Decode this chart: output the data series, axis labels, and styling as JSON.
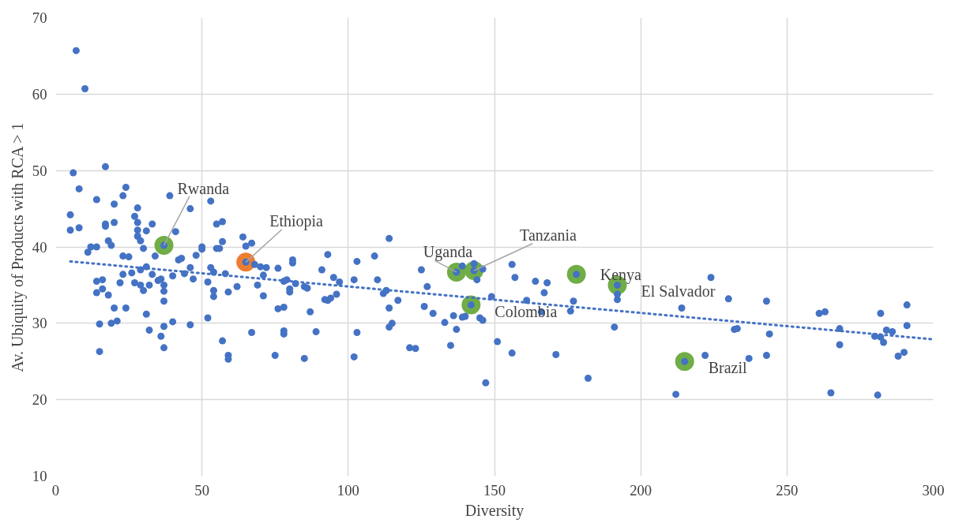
{
  "chart_data": {
    "type": "scatter",
    "xlabel": "Diversity",
    "ylabel": "Av. Ubiquity of Products with RCA > 1",
    "xlim": [
      0,
      300
    ],
    "xticks": [
      0,
      50,
      100,
      150,
      200,
      250,
      300
    ],
    "ylim": [
      10,
      70
    ],
    "yticks": [
      10,
      20,
      30,
      40,
      50,
      60,
      70
    ],
    "grid": true,
    "marker": "circle",
    "series": [
      {
        "type": "scatter",
        "color": "#70ad47",
        "x": [
          37,
          137,
          143,
          142,
          178,
          192,
          215
        ],
        "values": [
          40.2,
          36.7,
          36.9,
          32.4,
          36.4,
          35,
          25
        ]
      },
      {
        "type": "scatter",
        "color": "#ed7d31",
        "x": [
          65
        ],
        "values": [
          38
        ]
      },
      {
        "type": "line",
        "marker": "none",
        "line_style": "dotted",
        "color": "#4472c4",
        "x": [
          5,
          300
        ],
        "values": [
          38.1,
          27.9
        ]
      },
      {
        "color": "#4472c4",
        "x": [
          7,
          10,
          6,
          17,
          5,
          5,
          8,
          8,
          11,
          12,
          14,
          14,
          14,
          14,
          15,
          15,
          16,
          16,
          17,
          17,
          18,
          18,
          19,
          19,
          20,
          20,
          20,
          21,
          22,
          23,
          23,
          23,
          24,
          24,
          25,
          26,
          27,
          27,
          28,
          28,
          28,
          28,
          29,
          29,
          29,
          30,
          30,
          31,
          31,
          31,
          32,
          32,
          33,
          33,
          34,
          35,
          36,
          36,
          37,
          37,
          37,
          37,
          37,
          39,
          40,
          40,
          41,
          42,
          43,
          44,
          46,
          46,
          46,
          47,
          48,
          50,
          50,
          52,
          52,
          53,
          53,
          54,
          54,
          54,
          55,
          55,
          56,
          57,
          57,
          57,
          58,
          59,
          59,
          59,
          62,
          64,
          65,
          67,
          67,
          68,
          69,
          70,
          71,
          71,
          72,
          75,
          76,
          76,
          78,
          78,
          78,
          78,
          79,
          80,
          80,
          81,
          81,
          82,
          85,
          85,
          86,
          87,
          89,
          91,
          92,
          93,
          93,
          94,
          95,
          96,
          97,
          102,
          102,
          103,
          103,
          109,
          110,
          112,
          113,
          114,
          114,
          114,
          115,
          117,
          121,
          123,
          125,
          126,
          127,
          129,
          133,
          135,
          136,
          137,
          139,
          139,
          140,
          143,
          144,
          145,
          146,
          146,
          147,
          149,
          151,
          156,
          156,
          157,
          161,
          164,
          166,
          167,
          168,
          171,
          176,
          177,
          182,
          191,
          192,
          192,
          212,
          214,
          222,
          224,
          230,
          232,
          233,
          237,
          243,
          243,
          244,
          261,
          263,
          265,
          268,
          268,
          280,
          281,
          282,
          282,
          283,
          284,
          286,
          288,
          290,
          291,
          291,
          37,
          65,
          137,
          143,
          142,
          178,
          192,
          215
        ],
        "values": [
          65.7,
          60.7,
          49.7,
          50.5,
          44.2,
          42.2,
          47.6,
          42.5,
          39.3,
          40,
          46.2,
          40,
          35.5,
          34,
          29.9,
          26.3,
          35.7,
          34.5,
          43,
          42.7,
          40.8,
          33.7,
          40.2,
          30,
          45.6,
          43.2,
          32,
          30.3,
          35.3,
          46.7,
          38.8,
          36.4,
          47.8,
          32,
          38.7,
          36.6,
          44,
          35.3,
          45.1,
          43.2,
          42.2,
          41.4,
          40.8,
          37,
          35,
          39.8,
          34.3,
          42.1,
          37.4,
          31.2,
          35,
          29.1,
          43,
          36.4,
          38.8,
          35.6,
          35.8,
          28.3,
          35,
          34.2,
          32.9,
          29.6,
          26.8,
          46.7,
          36.2,
          30.2,
          42,
          38.3,
          38.5,
          36.5,
          45,
          37.3,
          29.8,
          35.8,
          38.9,
          40,
          39.7,
          35.4,
          30.7,
          37.3,
          46,
          36.7,
          34.3,
          33.5,
          43,
          39.8,
          39.8,
          43.3,
          40.7,
          27.7,
          36.5,
          34.1,
          25.8,
          25.3,
          34.8,
          41.3,
          40.1,
          40.5,
          28.8,
          37.7,
          35,
          37.4,
          36.3,
          33.6,
          37.3,
          25.8,
          37.2,
          31.9,
          35.5,
          32.1,
          29,
          28.6,
          35.7,
          34.5,
          34.1,
          38.3,
          37.9,
          35.2,
          34.8,
          25.4,
          34.6,
          31.5,
          28.9,
          37,
          33.1,
          33,
          39,
          33.3,
          36,
          33.8,
          35.4,
          25.6,
          35.7,
          38.1,
          28.8,
          38.8,
          35.7,
          33.9,
          34.3,
          41.1,
          32,
          29.5,
          30,
          33,
          26.8,
          26.7,
          37,
          32.2,
          34.8,
          31.3,
          30.1,
          27.1,
          31,
          29.2,
          37.5,
          30.8,
          30.9,
          37.8,
          35.7,
          30.7,
          37.1,
          30.4,
          22.2,
          33.5,
          27.6,
          26.1,
          37.7,
          36,
          33,
          35.5,
          31.5,
          34,
          35.3,
          25.9,
          31.6,
          32.9,
          22.8,
          29.5,
          33.1,
          33.8,
          20.7,
          32,
          25.8,
          36,
          33.2,
          29.2,
          29.3,
          25.4,
          25.8,
          32.9,
          28.6,
          31.3,
          31.5,
          20.9,
          29.3,
          27.2,
          28.3,
          20.6,
          31.3,
          28.2,
          27.5,
          29.1,
          28.9,
          25.7,
          26.2,
          32.4,
          29.7,
          40.2,
          38,
          36.7,
          36.9,
          32.4,
          36.4,
          35,
          25
        ]
      }
    ],
    "annotations": [
      {
        "text": "Rwanda",
        "x": 37,
        "y": 40.2
      },
      {
        "text": "Ethiopia",
        "x": 65,
        "y": 38
      },
      {
        "text": "Uganda",
        "x": 137,
        "y": 36.7
      },
      {
        "text": "Tanzania",
        "x": 143,
        "y": 36.9
      },
      {
        "text": "Colombia",
        "x": 142,
        "y": 32.4
      },
      {
        "text": "Kenya",
        "x": 178,
        "y": 36.4
      },
      {
        "text": "El Salvador",
        "x": 192,
        "y": 35
      },
      {
        "text": "Brazil",
        "x": 215,
        "y": 25
      }
    ]
  }
}
